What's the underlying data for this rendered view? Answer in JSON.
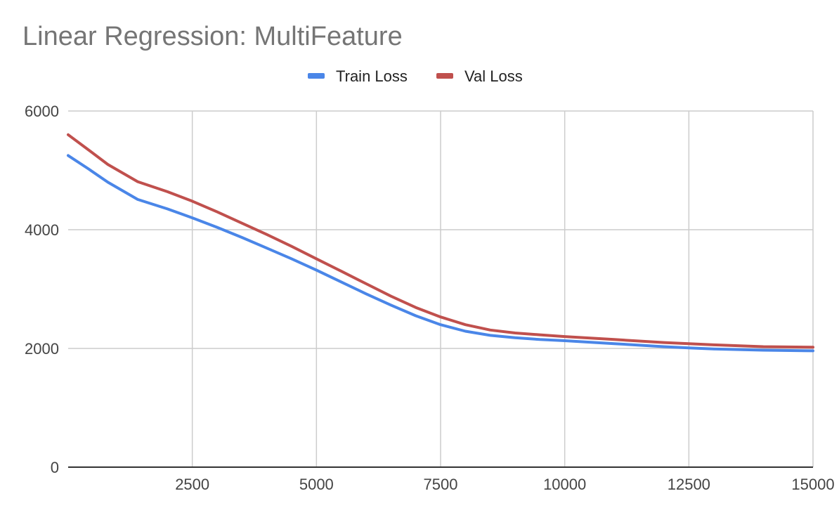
{
  "chart_data": {
    "type": "line",
    "title": "Linear Regression: MultiFeature",
    "xlabel": "",
    "ylabel": "",
    "xlim": [
      0,
      15000
    ],
    "ylim": [
      0,
      6000
    ],
    "x_ticks": [
      2500,
      5000,
      7500,
      10000,
      12500,
      15000
    ],
    "y_ticks": [
      0,
      2000,
      4000,
      6000
    ],
    "grid": true,
    "legend_position": "top",
    "series": [
      {
        "name": "Train Loss",
        "color": "#4a86e8",
        "points": [
          [
            0,
            5250
          ],
          [
            400,
            5030
          ],
          [
            800,
            4800
          ],
          [
            1400,
            4510
          ],
          [
            2000,
            4350
          ],
          [
            2500,
            4200
          ],
          [
            3000,
            4040
          ],
          [
            3500,
            3870
          ],
          [
            4000,
            3690
          ],
          [
            4500,
            3510
          ],
          [
            5000,
            3320
          ],
          [
            5500,
            3120
          ],
          [
            6000,
            2920
          ],
          [
            6500,
            2730
          ],
          [
            7000,
            2550
          ],
          [
            7500,
            2400
          ],
          [
            8000,
            2290
          ],
          [
            8500,
            2220
          ],
          [
            9000,
            2180
          ],
          [
            9500,
            2150
          ],
          [
            10000,
            2130
          ],
          [
            11000,
            2080
          ],
          [
            12000,
            2030
          ],
          [
            12500,
            2010
          ],
          [
            13000,
            1990
          ],
          [
            14000,
            1970
          ],
          [
            15000,
            1960
          ]
        ]
      },
      {
        "name": "Val Loss",
        "color": "#c0504d",
        "points": [
          [
            0,
            5600
          ],
          [
            400,
            5350
          ],
          [
            800,
            5100
          ],
          [
            1400,
            4810
          ],
          [
            2000,
            4640
          ],
          [
            2500,
            4480
          ],
          [
            3000,
            4300
          ],
          [
            3500,
            4110
          ],
          [
            4000,
            3920
          ],
          [
            4500,
            3720
          ],
          [
            5000,
            3510
          ],
          [
            5500,
            3300
          ],
          [
            6000,
            3090
          ],
          [
            6500,
            2880
          ],
          [
            7000,
            2690
          ],
          [
            7500,
            2530
          ],
          [
            8000,
            2400
          ],
          [
            8500,
            2310
          ],
          [
            9000,
            2260
          ],
          [
            9500,
            2230
          ],
          [
            10000,
            2200
          ],
          [
            11000,
            2150
          ],
          [
            12000,
            2100
          ],
          [
            12500,
            2080
          ],
          [
            13000,
            2060
          ],
          [
            14000,
            2030
          ],
          [
            15000,
            2020
          ]
        ]
      }
    ]
  }
}
